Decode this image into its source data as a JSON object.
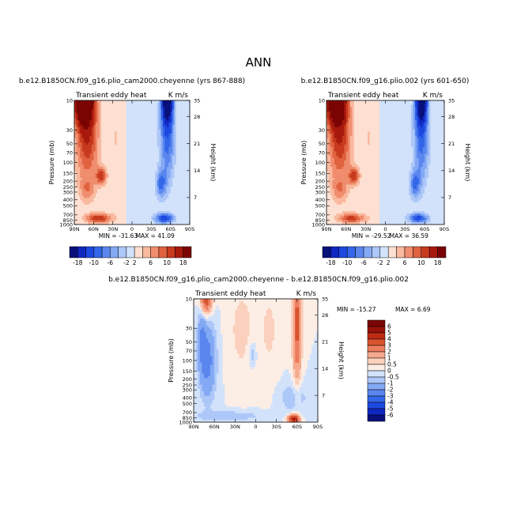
{
  "title": "ANN",
  "chart_data": [
    {
      "type": "heatmap",
      "title": "b.e12.B1850CN.f09_g16.plio_cam2000.cheyenne (yrs 867-888)",
      "left_string": "Transient eddy heat",
      "right_string": "K m/s",
      "ylabel": "Pressure (mb)",
      "ylabel_right": "Height (km)",
      "x_ticks": [
        "90N",
        "60N",
        "30N",
        "0",
        "30S",
        "60S",
        "90S"
      ],
      "y_ticks": [
        "10",
        "30",
        "50",
        "70",
        "100",
        "150",
        "200",
        "250",
        "300",
        "400",
        "500",
        "700",
        "850",
        "1000"
      ],
      "y_right_ticks": [
        "35",
        "28",
        "21",
        "14",
        "7"
      ],
      "min_label": "MIN = -31.63",
      "max_label": "MAX =  41.09",
      "min": -31.63,
      "max": 41.09,
      "colorbar_labels": [
        "-18",
        "-10",
        "-6",
        "-2",
        "2",
        "6",
        "10",
        "18"
      ],
      "blobs": [
        {
          "lat": 75,
          "lev": 1.0,
          "rx": 14,
          "ry": 0.35,
          "amp": 26
        },
        {
          "lat": 70,
          "lev": 1.6,
          "rx": 18,
          "ry": 0.7,
          "amp": 10
        },
        {
          "lat": 48,
          "lev": 2.22,
          "rx": 8,
          "ry": 0.14,
          "amp": 9
        },
        {
          "lat": 52,
          "lev": 2.9,
          "rx": 20,
          "ry": 0.08,
          "amp": 10
        },
        {
          "lat": 70,
          "lev": 2.45,
          "rx": 12,
          "ry": 0.2,
          "amp": 4
        },
        {
          "lat": 25,
          "lev": 1.6,
          "rx": 10,
          "ry": 1.2,
          "amp": 2
        },
        {
          "lat": -55,
          "lev": 1.0,
          "rx": 8,
          "ry": 0.35,
          "amp": -24
        },
        {
          "lat": -55,
          "lev": 1.6,
          "rx": 12,
          "ry": 0.7,
          "amp": -9
        },
        {
          "lat": -45,
          "lev": 2.35,
          "rx": 8,
          "ry": 0.22,
          "amp": -8
        },
        {
          "lat": -50,
          "lev": 2.9,
          "rx": 15,
          "ry": 0.08,
          "amp": -12
        },
        {
          "lat": -10,
          "lev": 1.7,
          "rx": 14,
          "ry": 1.3,
          "amp": -1.5
        }
      ]
    },
    {
      "type": "heatmap",
      "title": "b.e12.B1850CN.f09_g16.plio.002 (yrs 601-650)",
      "left_string": "Transient eddy heat",
      "right_string": "K m/s",
      "ylabel": "Pressure (mb)",
      "ylabel_right": "Height (km)",
      "x_ticks": [
        "90N",
        "60N",
        "30N",
        "0",
        "30S",
        "60S",
        "90S"
      ],
      "y_ticks": [
        "10",
        "30",
        "50",
        "70",
        "100",
        "150",
        "200",
        "250",
        "300",
        "400",
        "500",
        "700",
        "850",
        "1000"
      ],
      "y_right_ticks": [
        "35",
        "28",
        "21",
        "14",
        "7"
      ],
      "min_label": "MIN = -29.52",
      "max_label": "MAX =  36.59",
      "min": -29.52,
      "max": 36.59,
      "colorbar_labels": [
        "-18",
        "-10",
        "-6",
        "-2",
        "2",
        "6",
        "10",
        "18"
      ],
      "blobs": [
        {
          "lat": 75,
          "lev": 1.0,
          "rx": 14,
          "ry": 0.35,
          "amp": 24
        },
        {
          "lat": 70,
          "lev": 1.6,
          "rx": 18,
          "ry": 0.7,
          "amp": 10
        },
        {
          "lat": 48,
          "lev": 2.22,
          "rx": 8,
          "ry": 0.14,
          "amp": 9
        },
        {
          "lat": 52,
          "lev": 2.9,
          "rx": 20,
          "ry": 0.08,
          "amp": 9
        },
        {
          "lat": 70,
          "lev": 2.45,
          "rx": 12,
          "ry": 0.2,
          "amp": 4
        },
        {
          "lat": 25,
          "lev": 1.6,
          "rx": 10,
          "ry": 1.2,
          "amp": 2
        },
        {
          "lat": -55,
          "lev": 1.0,
          "rx": 8,
          "ry": 0.35,
          "amp": -23
        },
        {
          "lat": -55,
          "lev": 1.6,
          "rx": 12,
          "ry": 0.7,
          "amp": -9
        },
        {
          "lat": -45,
          "lev": 2.35,
          "rx": 8,
          "ry": 0.22,
          "amp": -8
        },
        {
          "lat": -50,
          "lev": 2.9,
          "rx": 15,
          "ry": 0.08,
          "amp": -11
        },
        {
          "lat": -10,
          "lev": 1.7,
          "rx": 14,
          "ry": 1.3,
          "amp": -1.5
        }
      ]
    },
    {
      "type": "heatmap",
      "title": "b.e12.B1850CN.f09_g16.plio_cam2000.cheyenne - b.e12.B1850CN.f09_g16.plio.002",
      "left_string": "Transient eddy heat",
      "right_string": "K m/s",
      "ylabel": "Pressure (mb)",
      "ylabel_right": "Height (km)",
      "x_ticks": [
        "90N",
        "60N",
        "30N",
        "0",
        "30S",
        "60S",
        "90S"
      ],
      "y_ticks": [
        "10",
        "30",
        "50",
        "70",
        "100",
        "150",
        "200",
        "250",
        "300",
        "400",
        "500",
        "700",
        "850",
        "1000"
      ],
      "y_right_ticks": [
        "35",
        "28",
        "21",
        "14",
        "7"
      ],
      "min_label": "MIN = -15.27",
      "max_label": "MAX =   6.69",
      "min": -15.27,
      "max": 6.69,
      "colorbar_labels": [
        "6",
        "5",
        "4",
        "3",
        "2",
        "1",
        "0.5",
        "0",
        "-0.5",
        "-1",
        "-2",
        "-3",
        "-4",
        "-5",
        "-6"
      ],
      "blobs": [
        {
          "lat": 72,
          "lev": 1.0,
          "rx": 8,
          "ry": 0.25,
          "amp": 4
        },
        {
          "lat": 70,
          "lev": 2.0,
          "rx": 12,
          "ry": 0.6,
          "amp": -2.5
        },
        {
          "lat": 78,
          "lev": 1.6,
          "rx": 6,
          "ry": 0.5,
          "amp": -1.5
        },
        {
          "lat": 5,
          "lev": 1.9,
          "rx": 6,
          "ry": 0.2,
          "amp": -1.0
        },
        {
          "lat": -60,
          "lev": 1.4,
          "rx": 6,
          "ry": 0.9,
          "amp": 3.5
        },
        {
          "lat": -55,
          "lev": 2.95,
          "rx": 8,
          "ry": 0.07,
          "amp": 5.5
        },
        {
          "lat": -55,
          "lev": 2.6,
          "rx": 20,
          "ry": 0.25,
          "amp": -1.0
        },
        {
          "lat": 20,
          "lev": 1.5,
          "rx": 20,
          "ry": 0.8,
          "amp": 0.7
        },
        {
          "lat": -20,
          "lev": 1.5,
          "rx": 15,
          "ry": 0.8,
          "amp": 0.6
        },
        {
          "lat": 40,
          "lev": 2.9,
          "rx": 50,
          "ry": 0.08,
          "amp": -1.0
        }
      ]
    }
  ],
  "colors": {
    "diverging_18": [
      "#08107b",
      "#1127c2",
      "#1d48e0",
      "#3366e8",
      "#5a86ee",
      "#84a9f4",
      "#adc7f8",
      "#d2e2fb",
      "#fde0d2",
      "#f9b99f",
      "#f08d6e",
      "#e0623f",
      "#c73a1e",
      "#a8190d",
      "#7a0403"
    ],
    "diverging_diff": [
      "#08107b",
      "#1127c2",
      "#1d48e0",
      "#3366e8",
      "#5a86ee",
      "#84a9f4",
      "#adc7f8",
      "#d2e2fb",
      "#fdeee5",
      "#fbd0bd",
      "#f6a98d",
      "#ec7d5e",
      "#d9532f",
      "#bd2c15",
      "#96110a",
      "#7a0403"
    ]
  }
}
